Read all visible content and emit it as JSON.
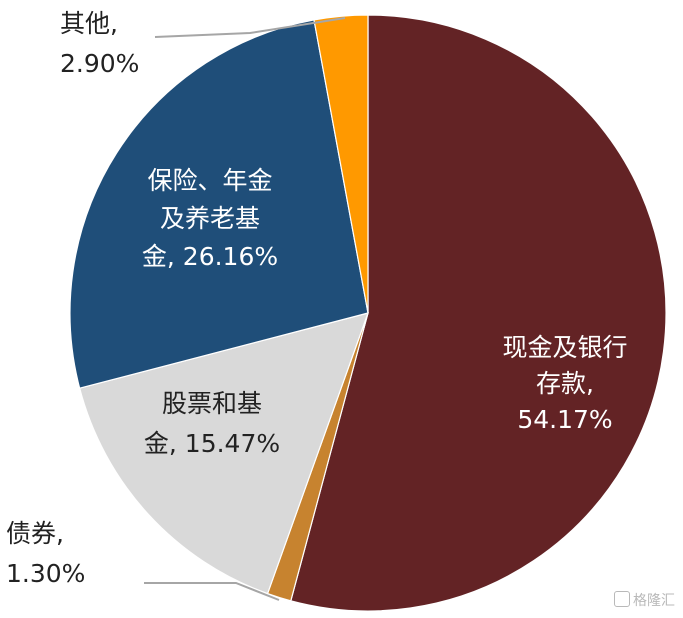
{
  "chart_data": {
    "type": "pie",
    "start_angle_deg": 0,
    "direction": "clockwise",
    "slices": [
      {
        "name": "现金及银行存款",
        "value": 54.17,
        "label_lines": [
          "现金及银行",
          "存款,",
          "54.17%"
        ],
        "color": "#632325"
      },
      {
        "name": "债券",
        "value": 1.3,
        "label_lines": [
          "债券,",
          "1.30%"
        ],
        "color": "#c7832f"
      },
      {
        "name": "股票和基金",
        "value": 15.47,
        "label_lines": [
          "股票和基",
          "金, 15.47%"
        ],
        "color": "#d9d9d9"
      },
      {
        "name": "保险、年金及养老基金",
        "value": 26.16,
        "label_lines": [
          "保险、年金",
          "及养老基",
          "金, 26.16%"
        ],
        "color": "#1f4e79"
      },
      {
        "name": "其他",
        "value": 2.9,
        "label_lines": [
          "其他,",
          "2.90%"
        ],
        "color": "#ff9900"
      }
    ]
  },
  "watermark": "格隆汇"
}
